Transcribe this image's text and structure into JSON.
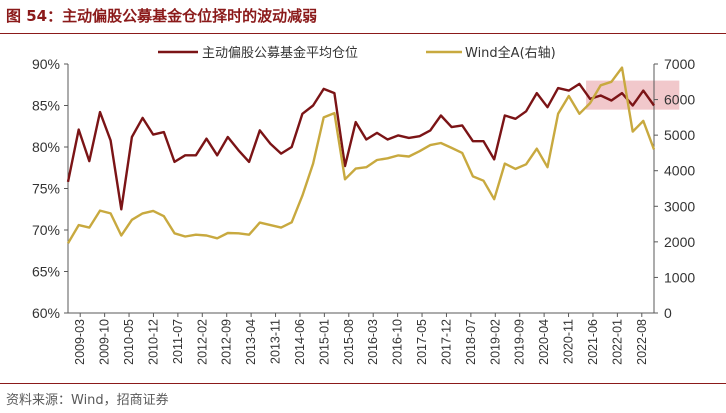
{
  "figure": {
    "title": "图 54：主动偏股公募基金仓位择时的波动减弱",
    "source": "资料来源：Wind，招商证券"
  },
  "chart_data": {
    "type": "line",
    "legend": {
      "position": "top",
      "entries": [
        "主动偏股公募基金平均仓位",
        "Wind全A(右轴)"
      ]
    },
    "colors": {
      "position": "#7b1416",
      "wind": "#c8a93f",
      "highlight": "#e8a3a8"
    },
    "grid": false,
    "y_left": {
      "ticks": [
        "60%",
        "65%",
        "70%",
        "75%",
        "80%",
        "85%",
        "90%"
      ],
      "range": [
        60,
        90
      ]
    },
    "y_right": {
      "ticks": [
        "0",
        "1000",
        "2000",
        "3000",
        "4000",
        "5000",
        "6000",
        "7000"
      ],
      "range": [
        0,
        7000
      ]
    },
    "x_tick_labels": [
      "2009-03",
      "2009-10",
      "2010-05",
      "2010-12",
      "2011-07",
      "2012-02",
      "2012-09",
      "2013-04",
      "2013-11",
      "2014-06",
      "2015-01",
      "2015-08",
      "2016-03",
      "2016-10",
      "2017-05",
      "2017-12",
      "2018-07",
      "2019-02",
      "2019-09",
      "2020-04",
      "2020-11",
      "2021-06",
      "2022-01",
      "2022-08"
    ],
    "highlight_region": {
      "x_from_index": 49,
      "x_to_index": 57,
      "y_range_pct": [
        84.5,
        88.0
      ]
    },
    "series": [
      {
        "name": "主动偏股公募基金平均仓位",
        "axis": "left",
        "values": [
          75.8,
          82.1,
          78.3,
          84.2,
          80.8,
          72.5,
          81.2,
          83.5,
          81.5,
          81.8,
          78.2,
          79.0,
          79.0,
          81.0,
          79.0,
          81.2,
          79.6,
          78.2,
          82.0,
          80.4,
          79.2,
          80.0,
          84.0,
          85.0,
          87.0,
          86.5,
          77.7,
          83.0,
          80.9,
          81.7,
          80.9,
          81.4,
          81.1,
          81.3,
          82.0,
          83.8,
          82.4,
          82.6,
          80.7,
          80.7,
          78.5,
          83.8,
          83.4,
          84.3,
          86.5,
          84.8,
          87.1,
          86.8,
          87.6,
          85.8,
          86.2,
          85.6,
          86.5,
          85.0,
          86.8,
          85.0
        ]
      },
      {
        "name": "Wind全A(右轴)",
        "axis": "right",
        "values": [
          1960,
          2470,
          2400,
          2880,
          2800,
          2180,
          2620,
          2800,
          2870,
          2720,
          2240,
          2150,
          2200,
          2180,
          2100,
          2250,
          2240,
          2200,
          2540,
          2470,
          2400,
          2550,
          3300,
          4200,
          5500,
          5620,
          3760,
          4060,
          4100,
          4300,
          4350,
          4430,
          4400,
          4550,
          4720,
          4780,
          4640,
          4500,
          3840,
          3720,
          3200,
          4200,
          4050,
          4180,
          4620,
          4100,
          5600,
          6100,
          5600,
          5900,
          6400,
          6500,
          6900,
          5100,
          5400,
          4600
        ]
      }
    ]
  }
}
